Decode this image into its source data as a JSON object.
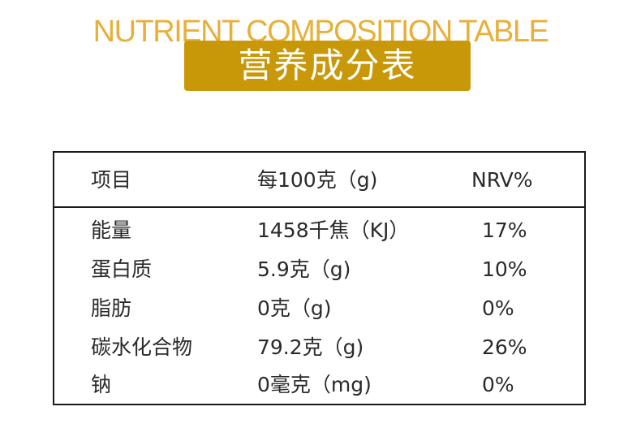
{
  "header": {
    "title_en": "NUTRIENT COMPOSITION TABLE",
    "title_cn": "营养成分表"
  },
  "table": {
    "columns": [
      "项目",
      "每100克（g)",
      "NRV%"
    ],
    "rows": [
      {
        "item": "能量",
        "per100": "1458千焦（KJ）",
        "nrv": "17%"
      },
      {
        "item": "蛋白质",
        "per100": "5.9克（g)",
        "nrv": "10%"
      },
      {
        "item": "脂肪",
        "per100": "0克（g)",
        "nrv": "0%"
      },
      {
        "item": "碳水化合物",
        "per100": "79.2克（g)",
        "nrv": "26%"
      },
      {
        "item": "钠",
        "per100": "0毫克（mg)",
        "nrv": "0%"
      }
    ]
  },
  "colors": {
    "title_en": "#e8b03a",
    "banner_bg": "#c99808",
    "banner_text": "#ffffff",
    "border": "#1a1a1a"
  }
}
